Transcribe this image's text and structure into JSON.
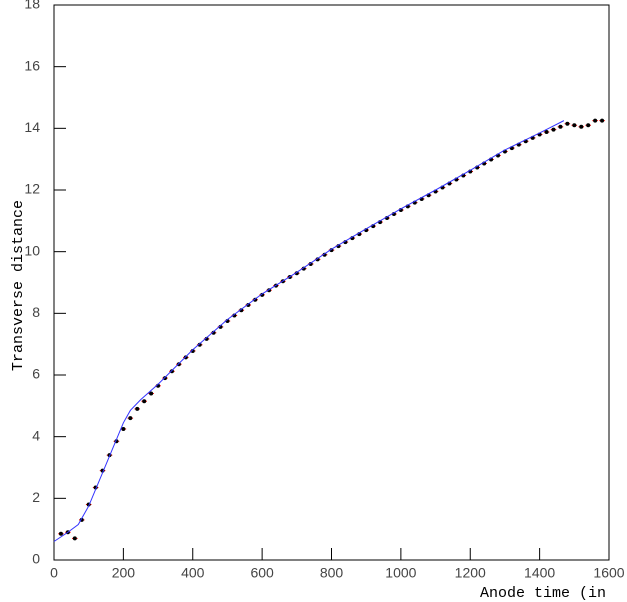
{
  "chart_data": {
    "type": "scatter",
    "x_label": "Anode time (in",
    "y_label": "Transverse distance",
    "xlim": [
      0,
      1600
    ],
    "ylim": [
      0,
      18
    ],
    "xticks": [
      0,
      200,
      400,
      600,
      800,
      1000,
      1200,
      1400,
      1600
    ],
    "yticks": [
      0,
      2,
      4,
      6,
      8,
      10,
      12,
      14,
      16,
      18
    ],
    "x_error": 8,
    "series": [
      {
        "color": "#000000",
        "error_color": "#ff0000",
        "x": [
          20,
          40,
          60,
          80,
          100,
          120,
          140,
          160,
          180,
          200,
          220,
          240,
          260,
          280,
          300,
          320,
          340,
          360,
          380,
          400,
          420,
          440,
          460,
          480,
          500,
          520,
          540,
          560,
          580,
          600,
          620,
          640,
          660,
          680,
          700,
          720,
          740,
          760,
          780,
          800,
          820,
          840,
          860,
          880,
          900,
          920,
          940,
          960,
          980,
          1000,
          1020,
          1040,
          1060,
          1080,
          1100,
          1120,
          1140,
          1160,
          1180,
          1200,
          1220,
          1240,
          1260,
          1280,
          1300,
          1320,
          1340,
          1360,
          1380,
          1400,
          1420,
          1440,
          1460,
          1480,
          1500,
          1520,
          1540,
          1560,
          1580
        ],
        "values": [
          0.85,
          0.9,
          0.7,
          1.3,
          1.8,
          2.35,
          2.9,
          3.4,
          3.85,
          4.25,
          4.6,
          4.9,
          5.15,
          5.4,
          5.65,
          5.9,
          6.12,
          6.35,
          6.57,
          6.78,
          6.98,
          7.17,
          7.37,
          7.56,
          7.75,
          7.93,
          8.1,
          8.27,
          8.44,
          8.6,
          8.75,
          8.9,
          9.04,
          9.18,
          9.3,
          9.45,
          9.6,
          9.75,
          9.9,
          10.05,
          10.18,
          10.31,
          10.44,
          10.57,
          10.7,
          10.83,
          10.96,
          11.09,
          11.22,
          11.35,
          11.47,
          11.59,
          11.71,
          11.83,
          11.95,
          12.08,
          12.21,
          12.34,
          12.47,
          12.6,
          12.73,
          12.86,
          12.99,
          13.12,
          13.25,
          13.36,
          13.47,
          13.58,
          13.69,
          13.8,
          13.88,
          13.96,
          14.05,
          14.15,
          14.1,
          14.05,
          14.1,
          14.25,
          14.25
        ]
      },
      {
        "type": "line",
        "color": "#3333ff",
        "x": [
          0,
          40,
          70,
          100,
          150,
          200,
          220,
          250,
          300,
          400,
          500,
          600,
          700,
          800,
          900,
          1000,
          1100,
          1200,
          1300,
          1400,
          1470
        ],
        "values": [
          0.6,
          0.9,
          1.15,
          1.75,
          3.1,
          4.45,
          4.85,
          5.2,
          5.7,
          6.82,
          7.8,
          8.63,
          9.33,
          10.08,
          10.74,
          11.39,
          12.0,
          12.64,
          13.3,
          13.85,
          14.25
        ]
      }
    ]
  }
}
